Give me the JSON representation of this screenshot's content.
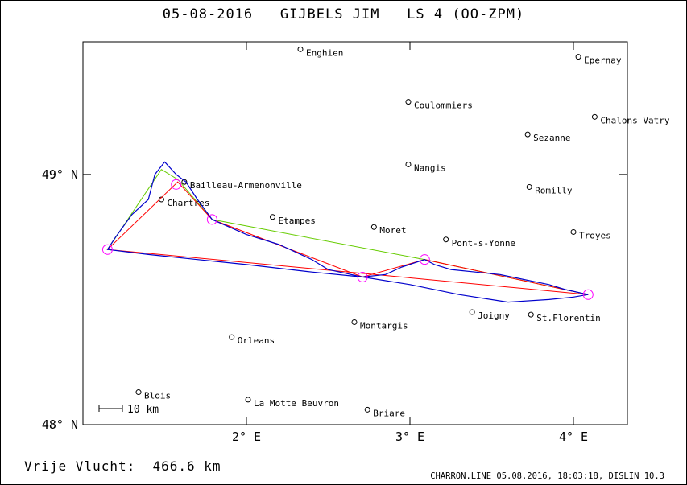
{
  "title": "05-08-2016   GIJBELS JIM   LS 4 (OO-ZPM)",
  "distance_text": "Vrije Vlucht:  466.6 km",
  "program_text": "CHARRON.LINE 05.08.2016, 18:03:18, DISLIN 10.3",
  "scale_label": "10 km",
  "axes": {
    "lon_range": [
      1.0,
      4.33
    ],
    "lat_range": [
      48.0,
      49.53
    ],
    "lon_ticks": [
      {
        "value": 2,
        "label": "2° E"
      },
      {
        "value": 3,
        "label": "3° E"
      },
      {
        "value": 4,
        "label": "4° E"
      }
    ],
    "lat_ticks": [
      {
        "value": 48,
        "label": "48° N"
      },
      {
        "value": 49,
        "label": "49° N"
      }
    ]
  },
  "colors": {
    "track": "#0000cc",
    "task_line": "#ff0000",
    "flight_line": "#66cc00",
    "turnpoint": "#ff00ff"
  },
  "cities": [
    {
      "name": "Enghien",
      "lon": 2.33,
      "lat": 49.5
    },
    {
      "name": "Epernay",
      "lon": 4.03,
      "lat": 49.47
    },
    {
      "name": "Coulommiers",
      "lon": 2.99,
      "lat": 49.29
    },
    {
      "name": "Chalons Vatry",
      "lon": 4.13,
      "lat": 49.23
    },
    {
      "name": "Sezanne",
      "lon": 3.72,
      "lat": 49.16
    },
    {
      "name": "Nangis",
      "lon": 2.99,
      "lat": 49.04
    },
    {
      "name": "Bailleau-Armenonville",
      "lon": 1.62,
      "lat": 48.97
    },
    {
      "name": "Romilly",
      "lon": 3.73,
      "lat": 48.95
    },
    {
      "name": "Chartres",
      "lon": 1.48,
      "lat": 48.9
    },
    {
      "name": "Etampes",
      "lon": 2.16,
      "lat": 48.83
    },
    {
      "name": "Moret",
      "lon": 2.78,
      "lat": 48.79
    },
    {
      "name": "Troyes",
      "lon": 4.0,
      "lat": 48.77
    },
    {
      "name": "Pont-s-Yonne",
      "lon": 3.22,
      "lat": 48.74
    },
    {
      "name": "Joigny",
      "lon": 3.38,
      "lat": 48.45
    },
    {
      "name": "St.Florentin",
      "lon": 3.74,
      "lat": 48.44
    },
    {
      "name": "Montargis",
      "lon": 2.66,
      "lat": 48.41
    },
    {
      "name": "Orleans",
      "lon": 1.91,
      "lat": 48.35
    },
    {
      "name": "Blois",
      "lon": 1.34,
      "lat": 48.13
    },
    {
      "name": "La Motte Beuvron",
      "lon": 2.01,
      "lat": 48.1
    },
    {
      "name": "Briare",
      "lon": 2.74,
      "lat": 48.06
    }
  ],
  "turnpoints": [
    {
      "lon": 1.15,
      "lat": 48.7
    },
    {
      "lon": 1.57,
      "lat": 48.96
    },
    {
      "lon": 1.79,
      "lat": 48.82
    },
    {
      "lon": 2.71,
      "lat": 48.59
    },
    {
      "lon": 3.09,
      "lat": 48.66
    },
    {
      "lon": 4.09,
      "lat": 48.52
    }
  ],
  "task_route": [
    {
      "lon": 4.09,
      "lat": 48.52
    },
    {
      "lon": 1.15,
      "lat": 48.7
    },
    {
      "lon": 1.58,
      "lat": 48.97
    },
    {
      "lon": 1.79,
      "lat": 48.82
    },
    {
      "lon": 2.71,
      "lat": 48.59
    },
    {
      "lon": 3.09,
      "lat": 48.66
    },
    {
      "lon": 4.09,
      "lat": 48.52
    }
  ],
  "flight_line": [
    {
      "lon": 4.09,
      "lat": 48.52
    },
    {
      "lon": 3.09,
      "lat": 48.66
    },
    {
      "lon": 1.79,
      "lat": 48.82
    },
    {
      "lon": 1.58,
      "lat": 48.98
    },
    {
      "lon": 1.48,
      "lat": 49.02
    },
    {
      "lon": 1.15,
      "lat": 48.7
    }
  ],
  "gps_track": [
    {
      "lon": 4.09,
      "lat": 48.52
    },
    {
      "lon": 3.95,
      "lat": 48.54
    },
    {
      "lon": 3.85,
      "lat": 48.56
    },
    {
      "lon": 3.7,
      "lat": 48.58
    },
    {
      "lon": 3.55,
      "lat": 48.6
    },
    {
      "lon": 3.4,
      "lat": 48.61
    },
    {
      "lon": 3.25,
      "lat": 48.62
    },
    {
      "lon": 3.15,
      "lat": 48.64
    },
    {
      "lon": 3.09,
      "lat": 48.66
    },
    {
      "lon": 2.95,
      "lat": 48.63
    },
    {
      "lon": 2.85,
      "lat": 48.6
    },
    {
      "lon": 2.71,
      "lat": 48.59
    },
    {
      "lon": 2.5,
      "lat": 48.62
    },
    {
      "lon": 2.4,
      "lat": 48.66
    },
    {
      "lon": 2.2,
      "lat": 48.72
    },
    {
      "lon": 2.0,
      "lat": 48.76
    },
    {
      "lon": 1.79,
      "lat": 48.82
    },
    {
      "lon": 1.7,
      "lat": 48.9
    },
    {
      "lon": 1.63,
      "lat": 48.97
    },
    {
      "lon": 1.57,
      "lat": 49.0
    },
    {
      "lon": 1.5,
      "lat": 49.05
    },
    {
      "lon": 1.44,
      "lat": 49.0
    },
    {
      "lon": 1.4,
      "lat": 48.9
    },
    {
      "lon": 1.3,
      "lat": 48.84
    },
    {
      "lon": 1.2,
      "lat": 48.75
    },
    {
      "lon": 1.15,
      "lat": 48.7
    },
    {
      "lon": 1.4,
      "lat": 48.68
    },
    {
      "lon": 1.7,
      "lat": 48.66
    },
    {
      "lon": 2.0,
      "lat": 48.64
    },
    {
      "lon": 2.4,
      "lat": 48.61
    },
    {
      "lon": 2.71,
      "lat": 48.59
    },
    {
      "lon": 3.0,
      "lat": 48.56
    },
    {
      "lon": 3.3,
      "lat": 48.52
    },
    {
      "lon": 3.6,
      "lat": 48.49
    },
    {
      "lon": 3.85,
      "lat": 48.5
    },
    {
      "lon": 4.0,
      "lat": 48.51
    },
    {
      "lon": 4.09,
      "lat": 48.52
    }
  ]
}
